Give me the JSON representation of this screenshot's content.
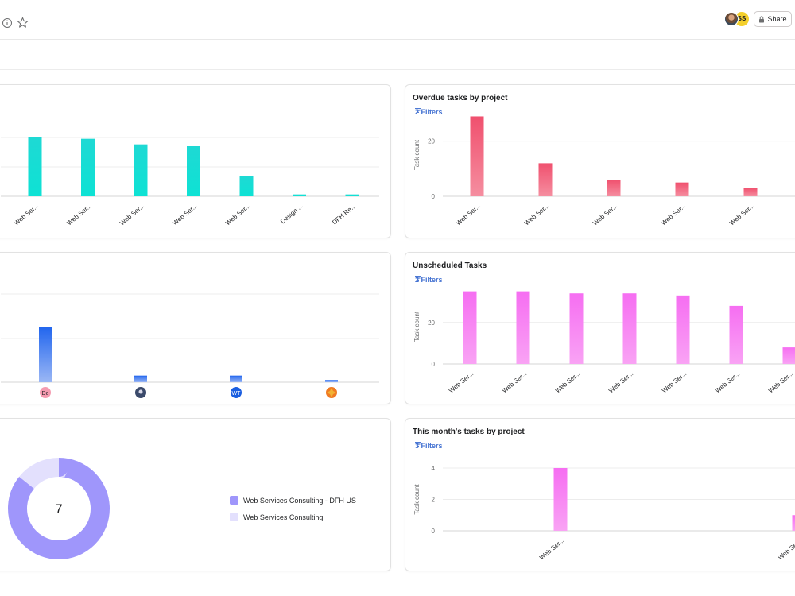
{
  "header": {
    "share_label": "Share",
    "avatar_initials": "SS"
  },
  "cards": {
    "top_left": {
      "color_top": "#1ed9d4",
      "color_bottom": "#0ee2d4",
      "chart_data": {
        "type": "bar",
        "categories": [
          "Web Ser...",
          "Web Ser...",
          "Web Ser...",
          "Web Ser...",
          "Web Ser...",
          "Design ...",
          "DFH Re..."
        ],
        "values": [
          32,
          31,
          28,
          27,
          11,
          1,
          1
        ],
        "ylim": [
          0,
          45
        ]
      }
    },
    "overdue": {
      "title": "Overdue tasks by project",
      "filter_label": "2 Filters",
      "color_top": "#f0506e",
      "color_bottom": "#f58ea0",
      "chart_data": {
        "type": "bar",
        "ylabel": "Task count",
        "yticks": [
          0,
          20
        ],
        "ylim": [
          0,
          30
        ],
        "categories": [
          "Web Ser...",
          "Web Ser...",
          "Web Ser...",
          "Web Ser...",
          "Web Ser..."
        ],
        "values": [
          29,
          12,
          6,
          5,
          3
        ]
      }
    },
    "mid_left": {
      "color_top": "#2266ee",
      "color_bottom": "#9bb7f5",
      "chart_data": {
        "type": "bar",
        "categories": [
          "De",
          "photo",
          "WT",
          "sun"
        ],
        "values": [
          25,
          3,
          3,
          1
        ],
        "ylim": [
          0,
          40
        ]
      },
      "assignees": [
        {
          "initials": "De",
          "bg": "#f59bb0",
          "fg": "#1e1f21"
        },
        {
          "initials": "",
          "bg": "#3b4a6b",
          "fg": "#ffffff"
        },
        {
          "initials": "WT",
          "bg": "#1a5ee0",
          "fg": "#ffffff"
        },
        {
          "initials": "",
          "bg": "#f07a22",
          "fg": "#ffffff"
        }
      ]
    },
    "unscheduled": {
      "title": "Unscheduled Tasks",
      "filter_label": "2 Filters",
      "color_top": "#f66ef2",
      "color_bottom": "#f9a3f4",
      "chart_data": {
        "type": "bar",
        "ylabel": "Task count",
        "yticks": [
          0,
          20
        ],
        "ylim": [
          0,
          36
        ],
        "categories": [
          "Web Ser...",
          "Web Ser...",
          "Web Ser...",
          "Web Ser...",
          "Web Ser...",
          "Web Ser...",
          "Web Ser..."
        ],
        "values": [
          35,
          35,
          34,
          34,
          33,
          28,
          8
        ]
      }
    },
    "donut": {
      "total": "7",
      "chart_data": {
        "type": "pie",
        "slices": [
          {
            "name": "Web Services Consulting - DFH US",
            "value": 6,
            "color": "#9f96fb"
          },
          {
            "name": "Web Services Consulting",
            "value": 1,
            "color": "#e3e0fd"
          }
        ]
      }
    },
    "this_month": {
      "title": "This month's tasks by project",
      "filter_label": "3 Filters",
      "color_top": "#f66ef2",
      "color_bottom": "#f9a3f4",
      "chart_data": {
        "type": "bar",
        "ylabel": "Task count",
        "yticks": [
          0,
          2,
          4
        ],
        "ylim": [
          0,
          4
        ],
        "categories": [
          "Web Ser...",
          "Web Ser..."
        ],
        "values": [
          4,
          1
        ]
      }
    }
  }
}
